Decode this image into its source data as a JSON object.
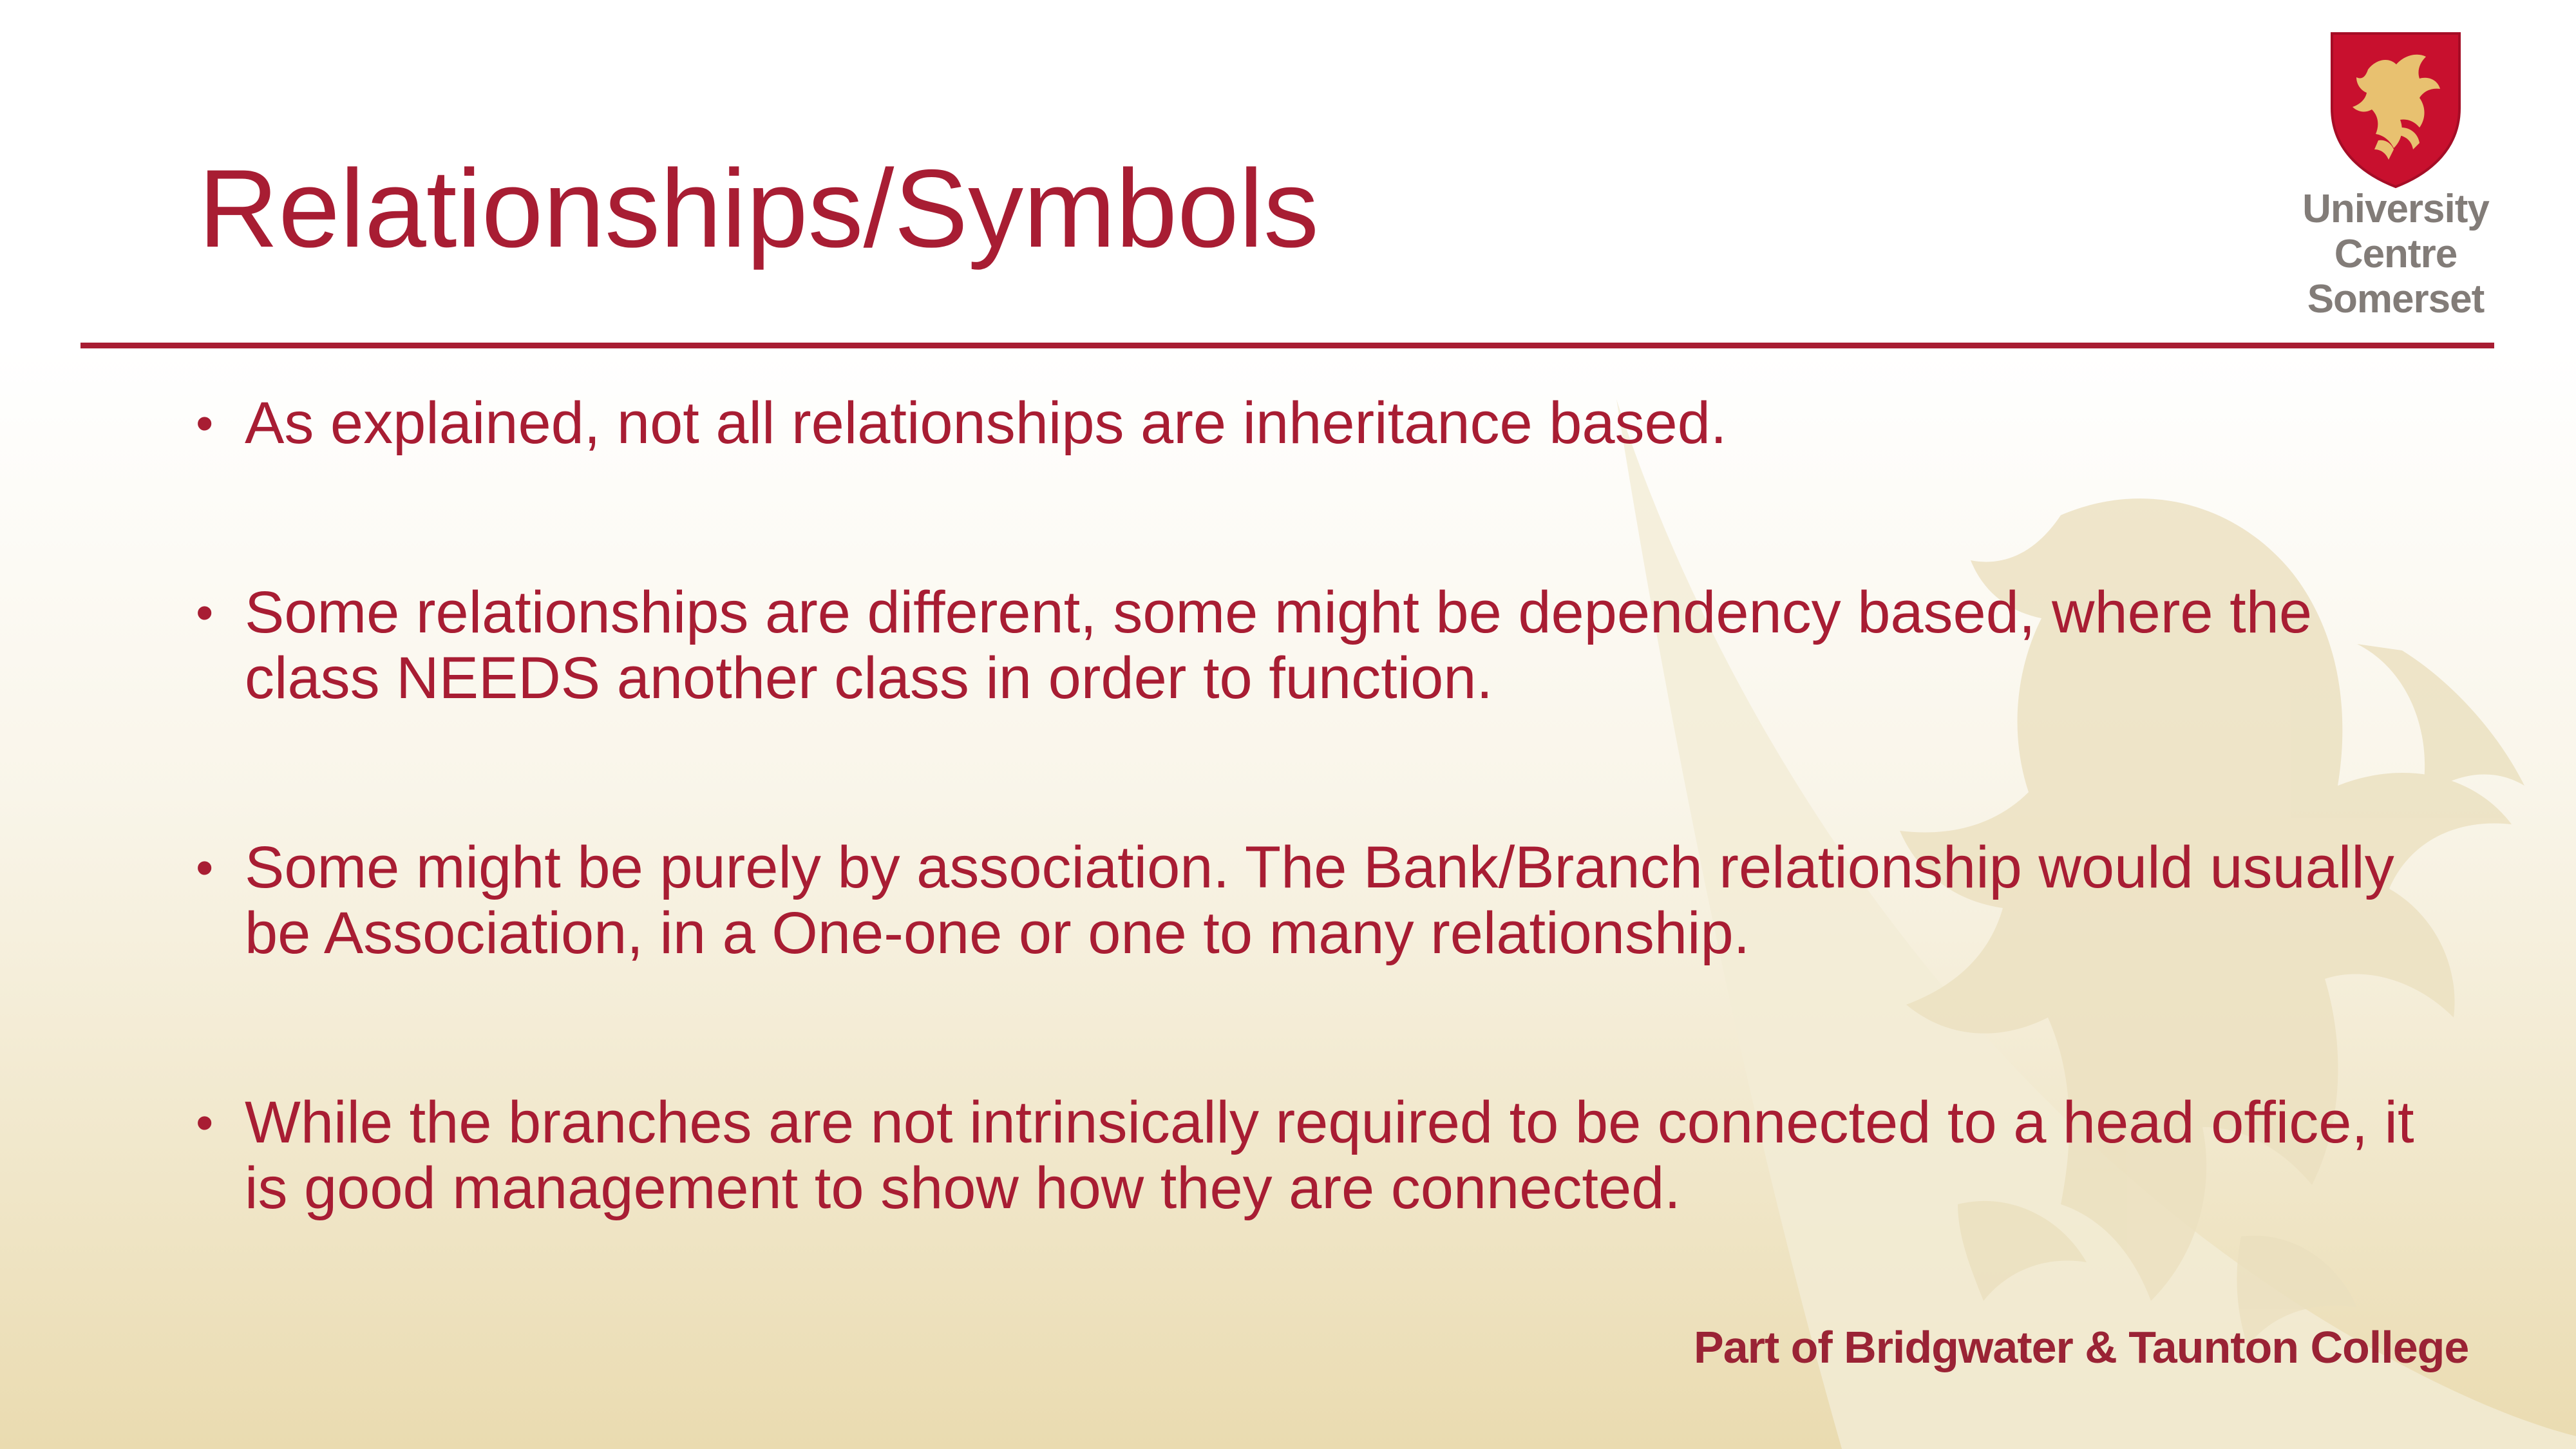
{
  "slide": {
    "title": "Relationships/Symbols",
    "bullets": [
      "As explained, not all relationships are inheritance based.",
      "Some relationships are different, some might be dependency based, where the class NEEDS another class in order to function.",
      "Some might be purely by association. The Bank/Branch relationship would usually be Association, in a One-one or one to many relationship.",
      "While the branches are not intrinsically required to be connected to a head office, it is good management to show how they are connected."
    ],
    "footer": "Part of Bridgwater & Taunton College"
  },
  "logo": {
    "line1": "University",
    "line2": "Centre",
    "line3": "Somerset",
    "icon": "dragon-shield-icon"
  },
  "colors": {
    "accent": "#a81d33",
    "logo_gray": "#827c78",
    "background_top": "#ffffff",
    "background_bottom": "#eadbb0"
  }
}
